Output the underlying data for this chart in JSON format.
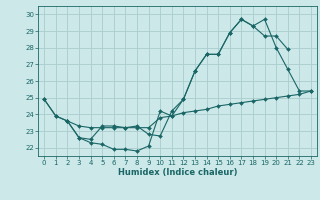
{
  "xlabel": "Humidex (Indice chaleur)",
  "background_color": "#cce8e8",
  "grid_color": "#aacccc",
  "line_color": "#1a6666",
  "xlim": [
    -0.5,
    23.5
  ],
  "ylim": [
    21.5,
    30.5
  ],
  "xticks": [
    0,
    1,
    2,
    3,
    4,
    5,
    6,
    7,
    8,
    9,
    10,
    11,
    12,
    13,
    14,
    15,
    16,
    17,
    18,
    19,
    20,
    21,
    22,
    23
  ],
  "yticks": [
    22,
    23,
    24,
    25,
    26,
    27,
    28,
    29,
    30
  ],
  "line1_x": [
    0,
    1,
    2,
    3,
    4,
    5,
    6,
    7,
    8,
    9,
    10,
    11,
    12,
    13,
    14,
    15,
    16,
    17,
    18,
    19,
    20,
    21,
    22,
    23
  ],
  "line1_y": [
    24.9,
    23.9,
    23.6,
    22.6,
    22.3,
    22.2,
    21.9,
    21.9,
    21.8,
    22.1,
    24.2,
    23.9,
    24.9,
    26.6,
    27.6,
    27.6,
    28.9,
    29.7,
    29.3,
    29.7,
    28.0,
    26.7,
    25.4,
    25.4
  ],
  "line2_x": [
    0,
    1,
    2,
    3,
    4,
    5,
    6,
    7,
    8,
    9,
    10,
    11,
    12,
    13,
    14,
    15,
    16,
    17,
    18,
    19,
    20,
    21,
    22,
    23
  ],
  "line2_y": [
    24.9,
    23.9,
    23.6,
    23.3,
    23.2,
    23.2,
    23.2,
    23.2,
    23.2,
    23.2,
    23.8,
    23.9,
    24.1,
    24.2,
    24.3,
    24.5,
    24.6,
    24.7,
    24.8,
    24.9,
    25.0,
    25.1,
    25.2,
    25.4
  ],
  "line3_x": [
    2,
    3,
    4,
    5,
    6,
    7,
    8,
    9,
    10,
    11,
    12,
    13,
    14,
    15,
    16,
    17,
    18,
    19,
    20,
    21
  ],
  "line3_y": [
    23.6,
    22.6,
    22.5,
    23.3,
    23.3,
    23.2,
    23.3,
    22.8,
    22.7,
    24.2,
    24.9,
    26.6,
    27.6,
    27.6,
    28.9,
    29.7,
    29.3,
    28.7,
    28.7,
    27.9
  ]
}
